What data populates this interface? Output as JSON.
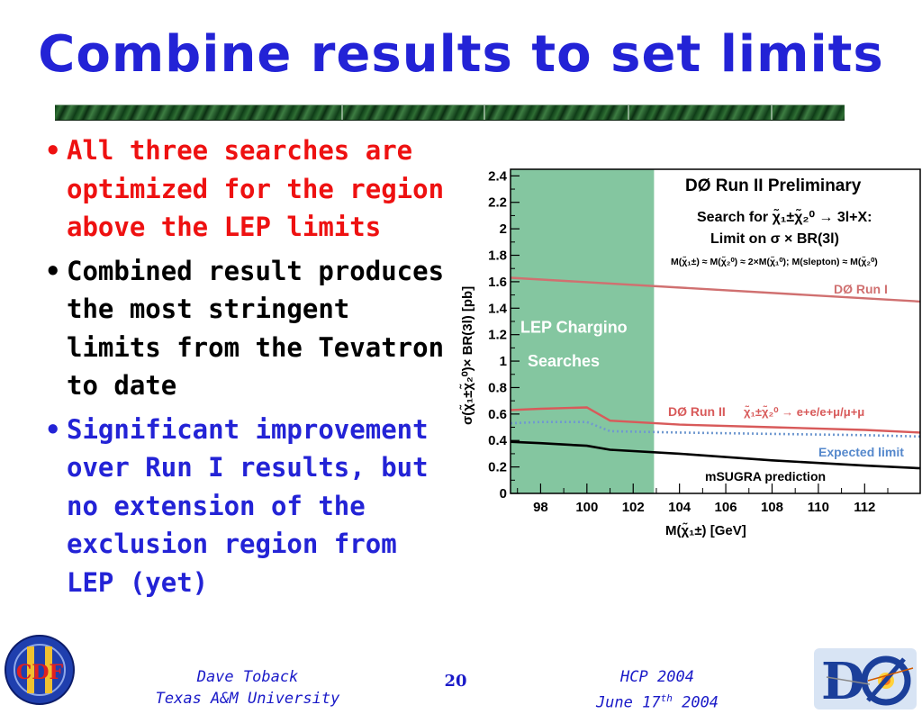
{
  "slide": {
    "title": "Combine results to set limits",
    "bullets": [
      "All three searches are optimized for the region above the LEP limits",
      "Combined result produces the most stringent limits from the Tevatron to date",
      "Significant improvement over Run I results, but no extension of the exclusion region from LEP (yet)"
    ],
    "footer": {
      "author": "Dave Toback",
      "affiliation": "Texas A&M University",
      "page": "20",
      "conference": "HCP 2004",
      "date_prefix": "June 17",
      "date_sup": "th",
      "date_year": "2004"
    },
    "logos": {
      "left": "CDF II",
      "right": "DØ"
    }
  },
  "chart_data": {
    "type": "line",
    "title": "DØ Run II Preliminary",
    "subtitle_line1": "Search for χ̃₁±χ̃₂⁰ → 3l+X:",
    "subtitle_line2": "Limit on σ × BR(3l)",
    "subtitle_line3": "M(χ̃₁±) ≈ M(χ̃₂⁰) ≈ 2×M(χ̃₁⁰); M(slepton) ≈ M(χ̃₂⁰)",
    "xlabel": "M(χ̃₁±) [GeV]",
    "ylabel": "σ(χ̃₁±χ̃₂⁰)× BR(3l) [pb]",
    "xlim": [
      96.7,
      114.4
    ],
    "ylim": [
      0,
      2.45
    ],
    "xticks": [
      98,
      100,
      102,
      104,
      106,
      108,
      110,
      112
    ],
    "yticks": [
      0,
      0.2,
      0.4,
      0.6,
      0.8,
      1,
      1.2,
      1.4,
      1.6,
      1.8,
      2,
      2.2,
      2.4
    ],
    "yticklabels": [
      "0",
      "0.2",
      "0.4",
      "0.6",
      "0.8",
      "1",
      "1.2",
      "1.4",
      "1.6",
      "1.8",
      "2",
      "2.2",
      "2.4"
    ],
    "grid": false,
    "shaded_region": {
      "x": [
        96.7,
        102.9
      ],
      "label_line1": "LEP Chargino",
      "label_line2": "Searches",
      "color": "#84c6a0"
    },
    "series": [
      {
        "name": "DØ Run I",
        "color": "#d07070",
        "style": "solid",
        "x": [
          96.7,
          114.4
        ],
        "y": [
          1.63,
          1.45
        ]
      },
      {
        "name": "DØ Run II",
        "label_suffix": "χ̃₁±χ̃₂⁰ → e+e/e+μ/μ+μ",
        "color": "#d85a5a",
        "style": "solid",
        "x": [
          96.7,
          98,
          100,
          101,
          104,
          108,
          112,
          114.4
        ],
        "y": [
          0.63,
          0.64,
          0.65,
          0.55,
          0.52,
          0.5,
          0.48,
          0.46
        ]
      },
      {
        "name": "Expected limit",
        "color": "#7099d0",
        "style": "dotted",
        "x": [
          96.7,
          98,
          100,
          101,
          104,
          108,
          112,
          114.4
        ],
        "y": [
          0.53,
          0.54,
          0.54,
          0.47,
          0.46,
          0.45,
          0.44,
          0.43
        ]
      },
      {
        "name": "mSUGRA prediction",
        "color": "#000000",
        "style": "solid",
        "x": [
          96.7,
          98,
          100,
          101,
          104,
          108,
          112,
          114.4
        ],
        "y": [
          0.39,
          0.38,
          0.36,
          0.33,
          0.3,
          0.25,
          0.21,
          0.19
        ]
      }
    ]
  }
}
